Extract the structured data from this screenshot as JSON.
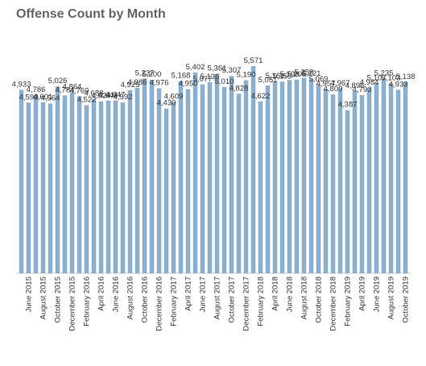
{
  "chart_data": {
    "type": "bar",
    "title": "Offense Count by Month",
    "xlabel": "",
    "ylabel": "",
    "categories": [
      "May 2015",
      "June 2015",
      "July 2015",
      "August 2015",
      "September 2015",
      "October 2015",
      "November 2015",
      "December 2015",
      "January 2016",
      "February 2016",
      "March 2016",
      "April 2016",
      "May 2016",
      "June 2016",
      "July 2016",
      "August 2016",
      "September 2016",
      "October 2016",
      "November 2016",
      "December 2016",
      "January 2017",
      "February 2017",
      "March 2017",
      "April 2017",
      "May 2017",
      "June 2017",
      "July 2017",
      "August 2017",
      "September 2017",
      "October 2017",
      "November 2017",
      "December 2017",
      "January 2018",
      "February 2018",
      "March 2018",
      "April 2018",
      "May 2018",
      "June 2018",
      "July 2018",
      "August 2018",
      "September 2018",
      "October 2018",
      "November 2018",
      "December 2018",
      "January 2019",
      "February 2019",
      "March 2019",
      "April 2019",
      "May 2019",
      "June 2019",
      "July 2019",
      "August 2019",
      "September 2019",
      "October 2019"
    ],
    "tick_labels": [
      "June 2015",
      "August 2015",
      "October 2015",
      "December 2015",
      "February 2016",
      "April 2016",
      "June 2016",
      "August 2016",
      "October 2016",
      "December 2016",
      "February 2017",
      "April 2017",
      "June 2017",
      "August 2017",
      "October 2017",
      "December 2017",
      "February 2018",
      "April 2018",
      "June 2018",
      "August 2018",
      "October 2018",
      "December 2018",
      "February 2019",
      "April 2019",
      "June 2019",
      "August 2019",
      "October 2019"
    ],
    "values": [
      4933,
      4590,
      4786,
      4601,
      4564,
      5026,
      4784,
      4864,
      4760,
      4522,
      4688,
      4624,
      4644,
      4647,
      4592,
      4925,
      4986,
      5237,
      5200,
      4976,
      4430,
      4609,
      5168,
      4950,
      5402,
      5077,
      5136,
      5361,
      5010,
      5307,
      4828,
      5190,
      5571,
      4622,
      5051,
      5161,
      5153,
      5198,
      5205,
      5258,
      5221,
      5069,
      4957,
      4809,
      4967,
      4387,
      4896,
      4793,
      4984,
      5107,
      5235,
      5103,
      4933,
      5138
    ],
    "data_labels": [
      "4,933",
      "4,590",
      "4,786",
      "4,601",
      "4,564",
      "5,026",
      "4,784",
      "4,864",
      "4,760",
      "4,522",
      "4,688",
      "4,624",
      "4,644",
      "4,647",
      "4,592",
      "4,925",
      "4,986",
      "5,237",
      "5,200",
      "4,976",
      "4,430",
      "4,609",
      "5,168",
      "4,950",
      "5,402",
      "5,077",
      "5,136",
      "5,361",
      "5,010",
      "5,307",
      "4,828",
      "5,190",
      "5,571",
      "4,622",
      "5,051",
      "5,161",
      "5,153",
      "5,198",
      "5,205",
      "5,258",
      "5,221",
      "5,069",
      "4,957",
      "4,809",
      "4,967",
      "4,387",
      "4,896",
      "4,793",
      "4,984",
      "5,107",
      "5,235",
      "5,103",
      "4,933",
      "5,138"
    ],
    "ylim": [
      0,
      5800
    ],
    "grid": false,
    "legend": "none",
    "bar_color": "#8aafcf"
  }
}
